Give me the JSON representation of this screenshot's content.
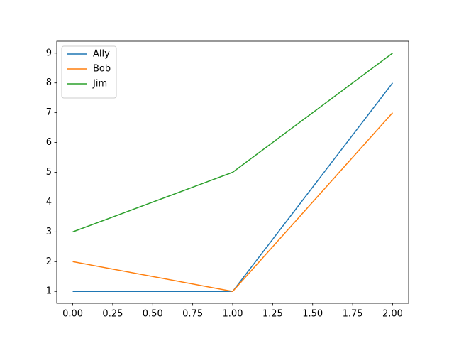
{
  "chart_data": {
    "type": "line",
    "x": [
      0,
      1,
      2
    ],
    "series": [
      {
        "name": "Ally",
        "color": "#1f77b4",
        "values": [
          1,
          1,
          8
        ]
      },
      {
        "name": "Bob",
        "color": "#ff7f0e",
        "values": [
          2,
          1,
          7
        ]
      },
      {
        "name": "Jim",
        "color": "#2ca02c",
        "values": [
          3,
          5,
          9
        ]
      }
    ],
    "xlim": [
      -0.1,
      2.1
    ],
    "xticks": [
      {
        "value": 0,
        "label": "0.00"
      },
      {
        "value": 0.25,
        "label": "0.25"
      },
      {
        "value": 0.5,
        "label": "0.50"
      },
      {
        "value": 0.75,
        "label": "0.75"
      },
      {
        "value": 1,
        "label": "1.00"
      },
      {
        "value": 1.25,
        "label": "1.25"
      },
      {
        "value": 1.5,
        "label": "1.50"
      },
      {
        "value": 1.75,
        "label": "1.75"
      },
      {
        "value": 2,
        "label": "2.00"
      }
    ],
    "ylim": [
      0.6,
      9.4
    ],
    "yticks": [
      1,
      2,
      3,
      4,
      5,
      6,
      7,
      8,
      9
    ],
    "grid": false,
    "legend": "upper left"
  }
}
